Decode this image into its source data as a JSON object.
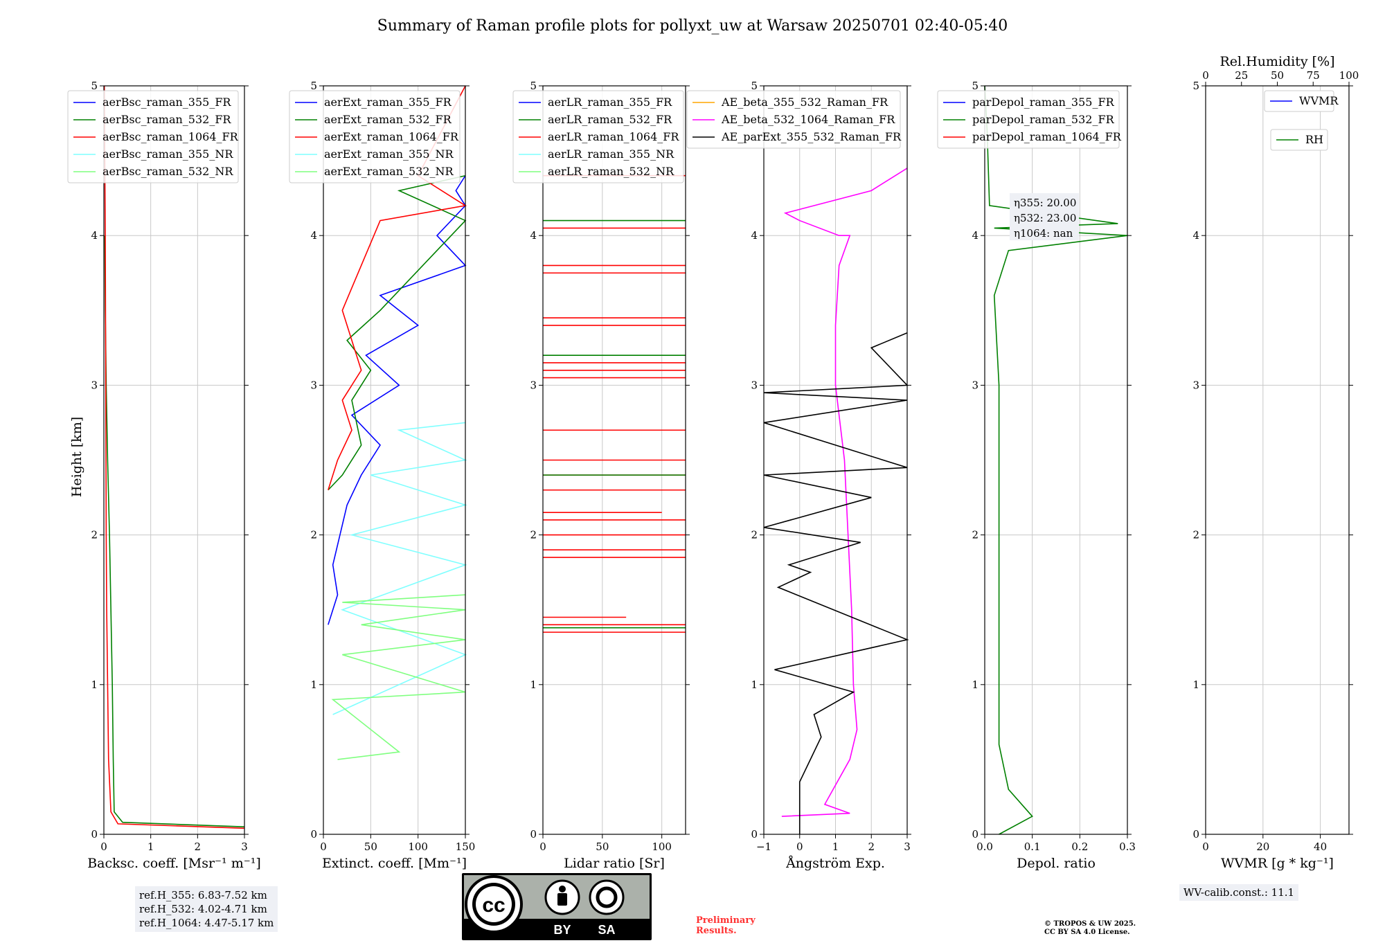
{
  "title": "Summary of Raman profile plots for pollyxt_uw at Warsaw 20250701 02:40-05:40",
  "ylabel": "Height [km]",
  "y_ticks": [
    "0",
    "1",
    "2",
    "3",
    "4",
    "5"
  ],
  "colors": {
    "blue": "#0000ff",
    "green": "#008000",
    "red": "#ff0000",
    "cyan": "#7fffff",
    "lightgreen": "#7fff7f",
    "orange": "#ffa500",
    "magenta": "#ff00ff",
    "black": "#000000"
  },
  "chart_data": [
    {
      "type": "line",
      "xlabel": "Backsc. coeff. [Msr⁻¹ m⁻¹]",
      "xlim": [
        0,
        3
      ],
      "ylim": [
        0,
        5
      ],
      "x_ticks": [
        "0",
        "1",
        "2",
        "3"
      ],
      "legend": [
        "aerBsc_raman_355_FR",
        "aerBsc_raman_532_FR",
        "aerBsc_raman_1064_FR",
        "aerBsc_raman_355_NR",
        "aerBsc_raman_532_NR"
      ],
      "legend_position": "top-left",
      "series": [
        {
          "name": "aerBsc_raman_532_FR",
          "color": "green",
          "x": [
            3,
            0.4,
            0.22,
            0.2,
            0.18,
            0.15,
            0.12,
            0.08,
            0.05,
            0.03,
            0.02
          ],
          "y": [
            0.05,
            0.08,
            0.15,
            0.5,
            1.0,
            1.5,
            2.0,
            2.5,
            3.0,
            3.5,
            4.0
          ]
        },
        {
          "name": "aerBsc_raman_1064_FR",
          "color": "red",
          "x": [
            3,
            0.3,
            0.15,
            0.1,
            0.08,
            0.06,
            0.05,
            0.04,
            0.03,
            0.02,
            0.01
          ],
          "y": [
            0.04,
            0.07,
            0.15,
            0.5,
            1.0,
            1.5,
            2.0,
            3.0,
            4.0,
            4.5,
            5.0
          ]
        }
      ]
    },
    {
      "type": "line",
      "xlabel": "Extinct. coeff. [Mm⁻¹]",
      "xlim": [
        0,
        150
      ],
      "ylim": [
        0,
        5
      ],
      "x_ticks": [
        "0",
        "50",
        "100",
        "150"
      ],
      "legend": [
        "aerExt_raman_355_FR",
        "aerExt_raman_532_FR",
        "aerExt_raman_1064_FR",
        "aerExt_raman_355_NR",
        "aerExt_raman_532_NR"
      ],
      "legend_position": "top-left",
      "series": [
        {
          "name": "aerExt_raman_355_FR",
          "color": "blue",
          "x": [
            5,
            15,
            10,
            25,
            40,
            60,
            30,
            80,
            45,
            100,
            60,
            150,
            120,
            150,
            140,
            150
          ],
          "y": [
            1.4,
            1.6,
            1.8,
            2.2,
            2.4,
            2.6,
            2.8,
            3.0,
            3.2,
            3.4,
            3.6,
            3.8,
            4.0,
            4.2,
            4.3,
            4.4
          ]
        },
        {
          "name": "aerExt_raman_532_FR",
          "color": "green",
          "x": [
            5,
            20,
            40,
            30,
            50,
            25,
            60,
            150,
            80,
            150
          ],
          "y": [
            2.3,
            2.4,
            2.6,
            2.9,
            3.1,
            3.3,
            3.5,
            4.1,
            4.3,
            4.4
          ]
        },
        {
          "name": "aerExt_raman_1064_FR",
          "color": "red",
          "x": [
            5,
            15,
            30,
            20,
            40,
            30,
            20,
            60,
            150,
            100,
            150
          ],
          "y": [
            2.3,
            2.5,
            2.7,
            2.9,
            3.1,
            3.3,
            3.5,
            4.1,
            4.2,
            4.4,
            5.0
          ]
        },
        {
          "name": "aerExt_raman_355_NR",
          "color": "cyan",
          "x": [
            10,
            150,
            20,
            150,
            30,
            150,
            50,
            150,
            80,
            150
          ],
          "y": [
            0.8,
            1.2,
            1.5,
            1.8,
            2.0,
            2.2,
            2.4,
            2.5,
            2.7,
            2.75
          ]
        },
        {
          "name": "aerExt_raman_532_NR",
          "color": "lightgreen",
          "x": [
            15,
            80,
            10,
            150,
            20,
            150,
            40,
            150,
            20,
            150
          ],
          "y": [
            0.5,
            0.55,
            0.9,
            0.95,
            1.2,
            1.3,
            1.4,
            1.5,
            1.55,
            1.6
          ]
        }
      ]
    },
    {
      "type": "line",
      "xlabel": "Lidar ratio [Sr]",
      "xlim": [
        0,
        120
      ],
      "ylim": [
        0,
        5
      ],
      "x_ticks": [
        "0",
        "50",
        "100"
      ],
      "legend": [
        "aerLR_raman_355_FR",
        "aerLR_raman_532_FR",
        "aerLR_raman_1064_FR",
        "aerLR_raman_355_NR",
        "aerLR_raman_532_NR"
      ],
      "legend_position": "top-left",
      "series": [
        {
          "name": "aerLR_raman_1064_FR",
          "color": "red",
          "h_lines_y": [
            1.35,
            1.4,
            1.45,
            1.85,
            1.9,
            2.0,
            2.1,
            2.15,
            2.3,
            2.4,
            2.5,
            2.7,
            3.05,
            3.1,
            3.15,
            3.4,
            3.45,
            3.75,
            3.8,
            4.05,
            4.4
          ],
          "h_lines_x": [
            120,
            120,
            70,
            120,
            120,
            120,
            120,
            100,
            120,
            120,
            120,
            120,
            120,
            120,
            120,
            120,
            120,
            120,
            120,
            120,
            120
          ]
        },
        {
          "name": "aerLR_raman_532_FR",
          "color": "green",
          "h_lines_y": [
            1.38,
            2.4,
            3.2,
            4.1
          ],
          "h_lines_x": [
            120,
            120,
            120,
            120
          ]
        }
      ]
    },
    {
      "type": "line",
      "xlabel": "Ångström Exp.",
      "xlim": [
        -1,
        3
      ],
      "ylim": [
        0,
        5
      ],
      "x_ticks": [
        "−1",
        "0",
        "1",
        "2",
        "3"
      ],
      "legend": [
        "AE_beta_355_532_Raman_FR",
        "AE_beta_532_1064_Raman_FR",
        "AE_parExt_355_532_Raman_FR"
      ],
      "legend_position": "top-left",
      "series": [
        {
          "name": "AE_beta_532_1064_Raman_FR",
          "color": "magenta",
          "x": [
            -0.5,
            1.4,
            0.7,
            1.4,
            1.6,
            1.5,
            1.45,
            1.25,
            1.0,
            1.0,
            1.1,
            1.4,
            1.1,
            0.0,
            -0.4,
            2.0,
            3.0
          ],
          "y": [
            0.12,
            0.14,
            0.2,
            0.5,
            0.7,
            1.0,
            1.5,
            2.5,
            3.0,
            3.4,
            3.8,
            4.0,
            4.0,
            4.1,
            4.15,
            4.3,
            4.45
          ]
        },
        {
          "name": "AE_parExt_355_532_Raman_FR",
          "color": "black",
          "x": [
            0,
            0,
            0.3,
            0.6,
            0.4,
            1.5,
            -0.7,
            3.0,
            -0.6,
            0.3,
            -0.3,
            1.7,
            -1.0,
            2.0,
            -1.0,
            3.0,
            -1.0,
            3.0,
            -1.0,
            3.0,
            2.0,
            3.0
          ],
          "y": [
            0,
            0.35,
            0.5,
            0.65,
            0.8,
            0.95,
            1.1,
            1.3,
            1.65,
            1.75,
            1.8,
            1.95,
            2.05,
            2.25,
            2.4,
            2.45,
            2.75,
            2.9,
            2.95,
            3.0,
            3.25,
            3.35
          ]
        }
      ]
    },
    {
      "type": "line",
      "xlabel": "Depol. ratio",
      "xlim": [
        0,
        0.3
      ],
      "ylim": [
        0,
        5
      ],
      "x_ticks": [
        "0.0",
        "0.1",
        "0.2",
        "0.3"
      ],
      "legend": [
        "parDepol_raman_355_FR",
        "parDepol_raman_532_FR",
        "parDepol_raman_1064_FR"
      ],
      "legend_position": "top-left",
      "series": [
        {
          "name": "parDepol_raman_532_FR",
          "color": "green",
          "x": [
            0.03,
            0.1,
            0.05,
            0.03,
            0.03,
            0.03,
            0.03,
            0.03,
            0.02,
            0.05,
            0.3,
            0.02,
            0.28,
            0.01,
            0.005,
            0.0
          ],
          "y": [
            0.0,
            0.12,
            0.3,
            0.6,
            1.0,
            1.5,
            2.0,
            3.0,
            3.6,
            3.9,
            4.0,
            4.05,
            4.08,
            4.2,
            4.7,
            5.0
          ]
        }
      ],
      "annotation": [
        "η355: 20.00",
        "η532: 23.00",
        "η1064: nan"
      ]
    },
    {
      "type": "line",
      "xlabel": "WVMR [g * kg⁻¹]",
      "xlim": [
        0,
        50
      ],
      "ylim": [
        0,
        5
      ],
      "x_ticks": [
        "0",
        "20",
        "40"
      ],
      "top_xlabel": "Rel.Humidity [%]",
      "top_x_ticks": [
        "0",
        "25",
        "50",
        "75",
        "100"
      ],
      "legend": [
        "WVMR",
        "RH"
      ],
      "legend_position": "top-right",
      "series": []
    }
  ],
  "ref_heights": [
    "ref.H_355: 6.83-7.52 km",
    "ref.H_532: 4.02-4.71 km",
    "ref.H_1064: 4.47-5.17 km"
  ],
  "wv_calib": "WV-calib.const.: 11.1",
  "preliminary": [
    "Preliminary",
    "Results."
  ],
  "copyright": [
    "© TROPOS & UW 2025.",
    "CC BY SA 4.0 License."
  ],
  "cc_badge": {
    "by": "BY",
    "sa": "SA",
    "logo": "cc-icon"
  }
}
